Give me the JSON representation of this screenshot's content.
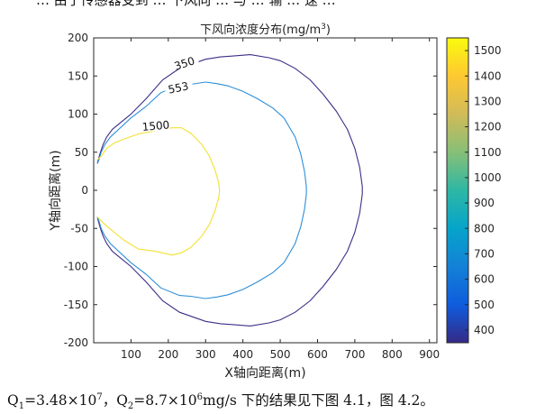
{
  "header_fragment": "… 由于传感器受到 … 下风向 … 与 … 输 … 速 …",
  "caption": {
    "q1_label": "Q",
    "q1_sub": "1",
    "q1_value": "=3.48×10",
    "q1_exp": "7",
    "sep": "，",
    "q2_label": "Q",
    "q2_sub": "2",
    "q2_value": "=8.7×10",
    "q2_exp": "6",
    "tail": "mg/s 下的结果见下图 4.1，图 4.2。"
  },
  "chart_data": {
    "type": "contour",
    "title": "下风向浓度分布(mg/m",
    "title_sup": "3",
    "title_close": ")",
    "xlabel": "X轴向距离(m)",
    "ylabel": "Y轴向距离(m)",
    "xlim": [
      0,
      920
    ],
    "ylim": [
      -200,
      200
    ],
    "xticks": [
      100,
      200,
      300,
      400,
      500,
      600,
      700,
      800,
      900
    ],
    "yticks": [
      -200,
      -150,
      -100,
      -50,
      0,
      50,
      100,
      150,
      200
    ],
    "colorbar": {
      "range": [
        350,
        1550
      ],
      "ticks": [
        400,
        500,
        600,
        700,
        800,
        900,
        1000,
        1100,
        1200,
        1300,
        1400,
        1500
      ],
      "colormap": "parula"
    },
    "contours": [
      {
        "level": 350,
        "label": "350",
        "color": "#3e2d87",
        "x": [
          10,
          12,
          18,
          25,
          35,
          50,
          100,
          140,
          185,
          230,
          300,
          340,
          420,
          470,
          500,
          540,
          580,
          615,
          650,
          680,
          700,
          713,
          720,
          720,
          713,
          700,
          680,
          650,
          615,
          580,
          540,
          500,
          470,
          420,
          340,
          300,
          230,
          185,
          140,
          100,
          50,
          35,
          25,
          18,
          12,
          10
        ],
        "y": [
          35,
          40,
          50,
          60,
          70,
          80,
          100,
          120,
          145,
          160,
          172,
          175,
          178,
          174,
          170,
          160,
          145,
          126,
          104,
          80,
          55,
          30,
          5,
          -5,
          -30,
          -55,
          -80,
          -104,
          -126,
          -145,
          -160,
          -170,
          -174,
          -178,
          -175,
          -172,
          -160,
          -145,
          -120,
          -100,
          -80,
          -70,
          -60,
          -50,
          -40,
          -35
        ]
      },
      {
        "level": 553,
        "label": "553",
        "color": "#2e8fd8",
        "x": [
          10,
          14,
          20,
          30,
          45,
          100,
          140,
          180,
          230,
          260,
          300,
          330,
          360,
          400,
          440,
          480,
          510,
          540,
          555,
          565,
          570,
          570,
          565,
          555,
          540,
          510,
          480,
          440,
          400,
          360,
          330,
          300,
          260,
          230,
          180,
          140,
          100,
          45,
          30,
          20,
          14,
          10
        ],
        "y": [
          35,
          40,
          50,
          60,
          70,
          95,
          110,
          128,
          138,
          139,
          142,
          140,
          137,
          130,
          120,
          108,
          95,
          70,
          48,
          25,
          5,
          -5,
          -25,
          -48,
          -70,
          -95,
          -108,
          -120,
          -130,
          -137,
          -140,
          -142,
          -139,
          -138,
          -128,
          -110,
          -95,
          -70,
          -60,
          -50,
          -40,
          -35
        ]
      },
      {
        "level": 1500,
        "label": "1500",
        "color": "#f3e032",
        "x": [
          10,
          20,
          35,
          55,
          80,
          120,
          165,
          210,
          235,
          260,
          290,
          310,
          325,
          335,
          337,
          337,
          335,
          325,
          310,
          290,
          260,
          235,
          210,
          165,
          120,
          80,
          55,
          35,
          20,
          10
        ],
        "y": [
          40,
          45,
          55,
          62,
          67,
          74,
          78,
          82,
          82,
          75,
          60,
          45,
          27,
          10,
          2,
          -2,
          -10,
          -27,
          -45,
          -60,
          -75,
          -82,
          -85,
          -80,
          -77,
          -65,
          -55,
          -47,
          -40,
          -35
        ]
      }
    ]
  }
}
